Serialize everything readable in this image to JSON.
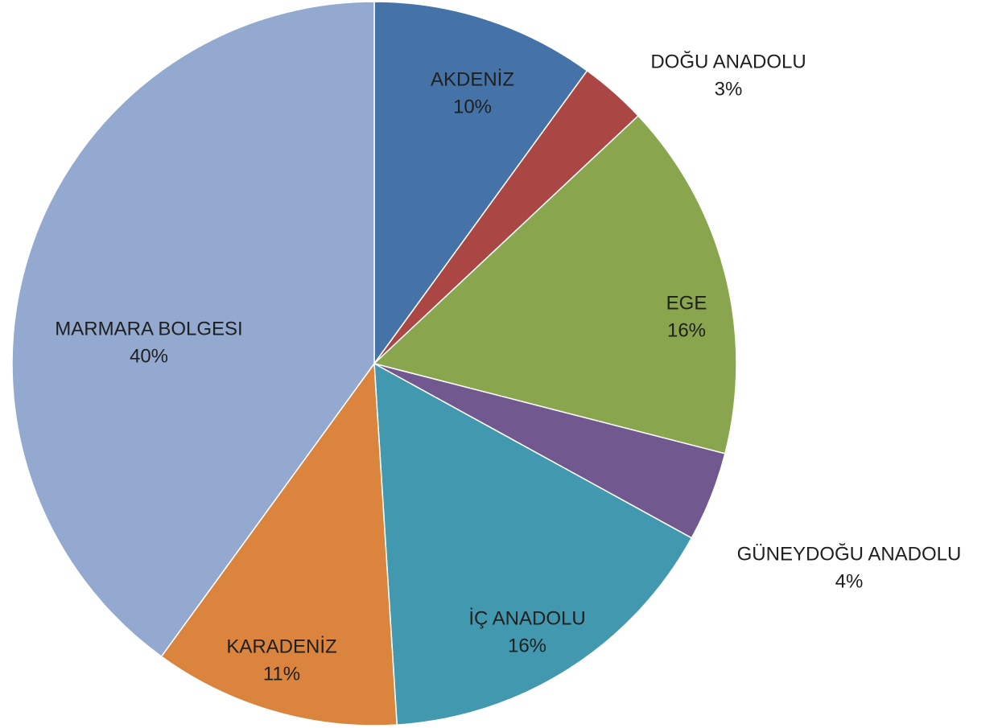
{
  "chart_data": {
    "type": "pie",
    "categories": [
      "AKDENİZ",
      "DOĞU ANADOLU",
      "EGE",
      "GÜNEYDOĞU ANADOLU",
      "İÇ ANADOLU",
      "KARADENİZ",
      "MARMARA BOLGESI"
    ],
    "values": [
      10,
      3,
      16,
      4,
      16,
      11,
      40
    ],
    "value_labels": [
      "10%",
      "3%",
      "16%",
      "4%",
      "16%",
      "11%",
      "40%"
    ],
    "colors": [
      "#4573a7",
      "#aa4644",
      "#89a54e",
      "#71588f",
      "#4198af",
      "#db843d",
      "#93a9cf"
    ]
  }
}
